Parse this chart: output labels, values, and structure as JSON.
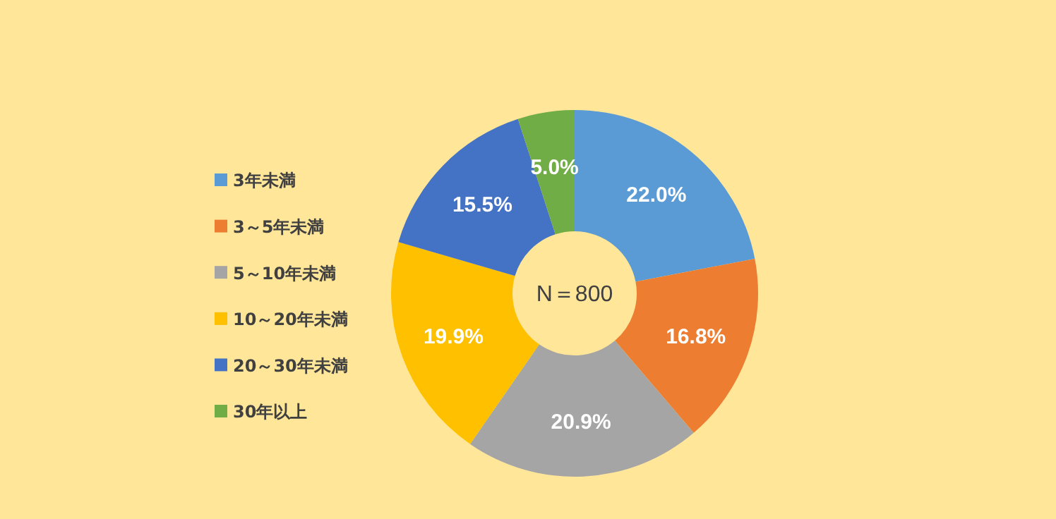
{
  "chart_data": {
    "type": "donut",
    "categories": [
      "3年未満",
      "3～5年未満",
      "5～10年未満",
      "10～20年未満",
      "20～30年未満",
      "30年以上"
    ],
    "values": [
      22.0,
      16.8,
      20.9,
      19.9,
      15.5,
      5.0
    ],
    "colors": [
      "#5b9bd5",
      "#ed7d31",
      "#a5a5a5",
      "#ffc000",
      "#4472c4",
      "#70ad47"
    ],
    "value_labels": [
      "22.0%",
      "16.8%",
      "20.9%",
      "19.9%",
      "15.5%",
      "5.0%"
    ],
    "annotations": [
      "N＝800"
    ],
    "legend": "left"
  }
}
